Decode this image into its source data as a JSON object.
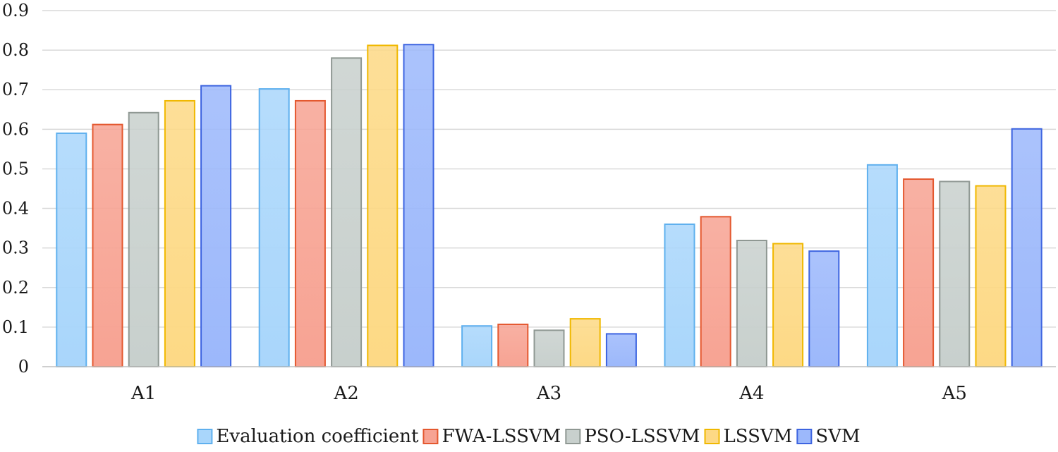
{
  "chart_data": {
    "type": "bar",
    "title": "",
    "xlabel": "",
    "ylabel": "",
    "categories": [
      "A1",
      "A2",
      "A3",
      "A4",
      "A5"
    ],
    "ylim": [
      0,
      0.9
    ],
    "yticks": [
      "0",
      "0.1",
      "0.2",
      "0.3",
      "0.4",
      "0.5",
      "0.6",
      "0.7",
      "0.8",
      "0.9"
    ],
    "grid": true,
    "legend_position": "bottom",
    "series": [
      {
        "name": "Evaluation coefficient",
        "values": [
          0.59,
          0.702,
          0.103,
          0.36,
          0.51
        ],
        "fill": "#a9d6fb",
        "stroke": "#5fb0ee"
      },
      {
        "name": "FWA-LSSVM",
        "values": [
          0.612,
          0.672,
          0.107,
          0.379,
          0.474
        ],
        "fill": "#f7a393",
        "stroke": "#e4582f"
      },
      {
        "name": "PSO-LSSVM",
        "values": [
          0.642,
          0.78,
          0.092,
          0.319,
          0.468
        ],
        "fill": "#c8d0cd",
        "stroke": "#8f9893"
      },
      {
        "name": "LSSVM",
        "values": [
          0.672,
          0.812,
          0.121,
          0.311,
          0.457
        ],
        "fill": "#fdd985",
        "stroke": "#f0b800"
      },
      {
        "name": "SVM",
        "values": [
          0.71,
          0.814,
          0.083,
          0.292,
          0.601
        ],
        "fill": "#9cb8fb",
        "stroke": "#3d64e0"
      }
    ]
  }
}
